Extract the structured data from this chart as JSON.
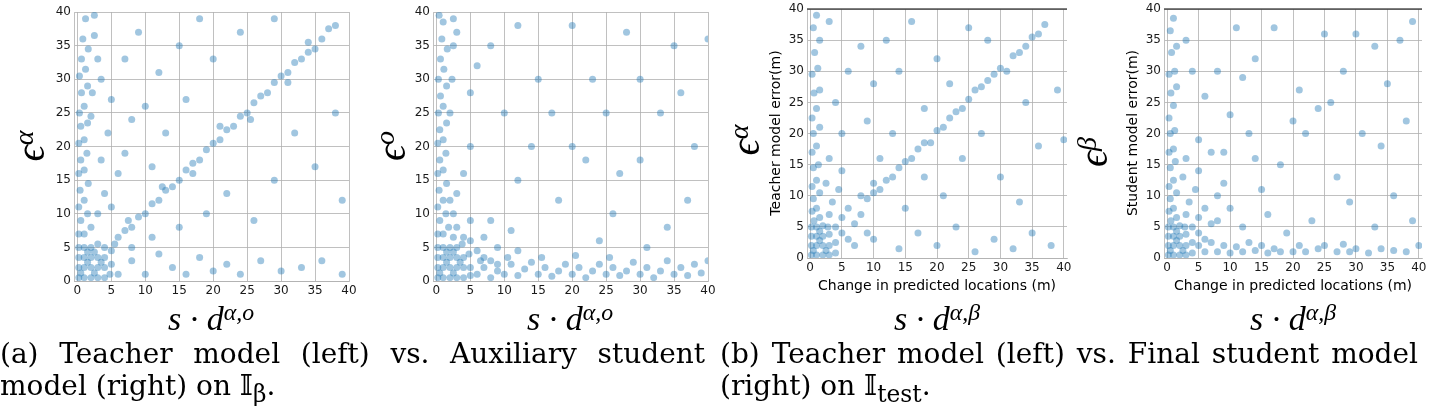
{
  "chart_data": [
    {
      "type": "scatter",
      "xlabel": "s · d$^{α,o}$",
      "ylabel": "ϵ$^{α}$",
      "xlim": [
        -0.5,
        40
      ],
      "ylim": [
        0,
        40
      ],
      "xticks": [
        0,
        5,
        10,
        15,
        20,
        25,
        30,
        35,
        40
      ],
      "yticks": [
        0,
        5,
        10,
        15,
        20,
        25,
        30,
        35,
        40
      ],
      "grid": true,
      "marker": "circle",
      "color": "#1f77b4",
      "x": [
        0.2,
        1,
        2,
        3,
        4,
        4.8,
        0.2,
        1,
        2,
        3,
        4,
        5,
        0.2,
        1,
        2,
        3,
        4,
        5,
        0.2,
        1,
        2,
        3,
        4,
        5.5,
        0.5,
        1.5,
        2.5,
        3.5,
        1.5,
        2.5,
        0.2,
        1,
        2,
        0.5,
        1.5,
        0.2,
        1,
        0.4,
        1.6,
        0.2,
        1,
        0.5,
        1.4,
        0.2,
        1,
        0.5,
        1.5,
        0.3,
        1,
        2,
        0.6,
        1.5,
        0.3,
        1.2,
        2.2,
        0.6,
        1.6,
        0.8,
        2.5,
        1.2,
        2.5,
        3,
        6,
        7,
        8,
        9,
        10,
        11,
        12,
        13,
        14,
        15,
        16,
        17,
        18,
        19,
        20,
        21,
        22,
        23,
        24,
        25,
        26,
        27,
        28,
        29,
        30,
        31,
        32,
        33,
        34,
        35,
        36,
        37,
        38,
        7.5,
        12.5,
        17,
        21,
        25.5,
        31,
        34,
        3,
        4,
        5,
        6,
        3.5,
        7,
        4.5,
        8,
        5,
        10,
        3.5,
        7,
        12,
        9,
        15,
        18,
        13,
        11,
        16,
        20,
        24,
        29,
        6,
        8,
        10,
        12,
        14,
        16,
        18,
        20,
        22,
        24,
        27,
        30,
        33,
        36,
        39,
        8,
        11,
        15,
        19,
        22,
        26,
        29,
        32,
        35,
        38,
        39
      ],
      "values": [
        0.5,
        0.5,
        0.5,
        0.5,
        0.5,
        1,
        2,
        2,
        2,
        2,
        2,
        2.5,
        3.5,
        3.5,
        3.5,
        3.5,
        3.5,
        4.5,
        5,
        5,
        5,
        5.5,
        5,
        5.5,
        1.2,
        2.8,
        1.2,
        2.8,
        4.3,
        4.3,
        7,
        7,
        8,
        9,
        10,
        11,
        12,
        13.5,
        14.5,
        16,
        16.5,
        18,
        19,
        20.5,
        21,
        23,
        23.5,
        25,
        26,
        24.5,
        28,
        29,
        30.5,
        31.5,
        28,
        33,
        34.5,
        36,
        36.5,
        39,
        39.5,
        33,
        6.5,
        7.5,
        8,
        9.5,
        10,
        11.5,
        12,
        13.5,
        14,
        15,
        16.5,
        17.5,
        18,
        19.5,
        20.5,
        21,
        22.5,
        23,
        24.5,
        25,
        26.5,
        27.5,
        28,
        29.5,
        30.5,
        31,
        32.5,
        33,
        34,
        34.5,
        36,
        37.5,
        38,
        9,
        14,
        16,
        23,
        24,
        29.5,
        35.5,
        10,
        13,
        11,
        16,
        18,
        19,
        22,
        24,
        27,
        26,
        30,
        33,
        31,
        37,
        35,
        39,
        22,
        17,
        27,
        33,
        37,
        39,
        1,
        3,
        1,
        4,
        2,
        1,
        3.5,
        1.5,
        2.5,
        1,
        3,
        1.5,
        2,
        3,
        1,
        5,
        6.5,
        8,
        10,
        13,
        9,
        15,
        22,
        17,
        25,
        12
      ],
      "annotations": [
        "(a) Teacher model (left) vs. Auxiliary student model (right) on 𝕀$_{β}$."
      ]
    },
    {
      "type": "scatter",
      "xlabel": "s · d$^{α,o}$",
      "ylabel": "ϵ$^{o}$",
      "xlim": [
        -0.5,
        40
      ],
      "ylim": [
        0,
        40
      ],
      "xticks": [
        0,
        5,
        10,
        15,
        20,
        25,
        30,
        35,
        40
      ],
      "yticks": [
        0,
        5,
        10,
        15,
        20,
        25,
        30,
        35,
        40
      ],
      "grid": true,
      "marker": "circle",
      "color": "#1f77b4",
      "x": [
        0.2,
        1,
        2,
        3,
        4,
        5,
        0.2,
        1,
        2,
        3,
        4,
        5,
        0.2,
        1,
        2,
        3,
        4,
        4.8,
        0.2,
        1,
        2,
        3,
        3.8,
        2.5,
        0.5,
        1.5,
        2.5,
        3.5,
        1.5,
        2.5,
        0.2,
        1,
        1.8,
        0.5,
        1.4,
        0.2,
        1,
        2,
        0.4,
        1.5,
        0.2,
        1,
        0.5,
        1.4,
        0.2,
        1,
        0.5,
        1.5,
        0.3,
        1,
        2,
        0.6,
        1.5,
        0.3,
        1.1,
        2.3,
        0.6,
        1.6,
        0.8,
        2.5,
        1,
        2.5,
        3,
        0.4,
        3,
        4,
        5,
        6,
        7,
        8,
        9,
        2.5,
        3,
        5,
        7,
        9,
        12,
        4,
        8,
        11,
        6,
        7,
        8,
        9,
        10,
        11,
        12,
        13,
        14,
        15,
        16,
        17,
        18,
        19,
        20,
        21,
        22,
        23,
        24,
        25,
        26,
        27,
        28,
        29,
        30,
        31,
        32,
        33,
        34,
        35,
        36,
        37,
        38,
        39,
        40,
        6.5,
        10.5,
        15.5,
        20.5,
        25.5,
        5,
        10,
        15,
        20,
        25,
        30,
        35,
        8,
        12,
        18,
        22,
        26,
        30,
        34,
        38,
        17,
        23,
        28,
        33,
        37,
        40,
        12,
        5,
        6,
        20,
        27,
        31,
        36,
        14,
        24
      ],
      "values": [
        0.5,
        0.5,
        0.5,
        0.5,
        0.5,
        0.8,
        2,
        2,
        2,
        2,
        2,
        2,
        3.5,
        3.5,
        3.5,
        3.5,
        3.5,
        4,
        5,
        5,
        5,
        5,
        5.5,
        6.5,
        1.2,
        2.8,
        1.2,
        2.8,
        4.3,
        4.3,
        7,
        7,
        8,
        9,
        10,
        11,
        12,
        12,
        13.5,
        14.5,
        16,
        16.5,
        18,
        19,
        20.5,
        21,
        22.5,
        23.5,
        25,
        26,
        25,
        27.5,
        29,
        30,
        31.5,
        30,
        33,
        34.5,
        36,
        35,
        38.5,
        39,
        37,
        39.5,
        8,
        6.5,
        6,
        4.5,
        3.5,
        3,
        2.5,
        10,
        13,
        9,
        6.5,
        5,
        4.5,
        16,
        9,
        7.5,
        1,
        2,
        0.5,
        1.5,
        1,
        2.5,
        0.8,
        1.8,
        2.8,
        1,
        2,
        0.7,
        1.5,
        2.5,
        1,
        2,
        0.5,
        1.5,
        2.5,
        1,
        2,
        0.8,
        1.5,
        2.8,
        1,
        2,
        0.5,
        1.5,
        3,
        1,
        2,
        0.8,
        2.5,
        1.2,
        3,
        3,
        3.5,
        3.5,
        3.8,
        3.5,
        20,
        25,
        30,
        20,
        25,
        30,
        35,
        35,
        15,
        12,
        18,
        10,
        18,
        8,
        20,
        25,
        30,
        37,
        25,
        12,
        36,
        38,
        28,
        32,
        38,
        16,
        5,
        28,
        20,
        6
      ]
    },
    {
      "type": "scatter",
      "xlabel": "s · d$^{α,β}$",
      "ylabel": "ϵ$^{α}$",
      "xlim": [
        -0.5,
        40.5
      ],
      "ylim": [
        0,
        40
      ],
      "xticks": [
        0,
        5,
        10,
        15,
        20,
        25,
        30,
        35,
        40
      ],
      "yticks": [
        0,
        5,
        10,
        15,
        20,
        25,
        30,
        35,
        40
      ],
      "grid": true,
      "marker": "circle",
      "color": "#1f77b4",
      "x": [
        0.2,
        1,
        2,
        3,
        4,
        0.2,
        1,
        2,
        3,
        4,
        0.2,
        1,
        2,
        3,
        0.2,
        1,
        2,
        0.5,
        1.5,
        2.5,
        1.5,
        0.6,
        1.5,
        2.8,
        0.3,
        1,
        0.5,
        1.5,
        0.3,
        1,
        0.5,
        1.3,
        0.3,
        1,
        0.5,
        1.5,
        0.3,
        1,
        0.6,
        1.5,
        0.3,
        1.2,
        0.7,
        1.5,
        0.5,
        1,
        3,
        4,
        5,
        5,
        6,
        7,
        3.5,
        6,
        8,
        4.5,
        7,
        9,
        2.5,
        5,
        8,
        3,
        9,
        10,
        11,
        12,
        13,
        14,
        15,
        16,
        17,
        18,
        19,
        20,
        21,
        22,
        23,
        24,
        25,
        26,
        27,
        28,
        29,
        30,
        31,
        32,
        33,
        34,
        35,
        36,
        37,
        10,
        4,
        6,
        8,
        10,
        12,
        14,
        16,
        20,
        5,
        9,
        13,
        18,
        22,
        25,
        28,
        3,
        11,
        15,
        18,
        21,
        24,
        27,
        30,
        33,
        36,
        39,
        10,
        14,
        17,
        20,
        23,
        26,
        29,
        32,
        35,
        38,
        34,
        40
      ],
      "values": [
        0.5,
        0.5,
        0.5,
        0.5,
        0.8,
        2,
        2,
        2,
        2,
        2.5,
        3.5,
        3.5,
        3.5,
        3.8,
        5,
        5,
        5.2,
        1.2,
        2.8,
        1.2,
        4.3,
        6,
        6.5,
        5,
        7.5,
        8,
        9.5,
        10.5,
        11.5,
        12.5,
        14.5,
        15,
        17,
        18,
        20,
        21,
        22.5,
        24,
        26.5,
        27,
        29.5,
        30.5,
        33,
        35,
        37,
        39,
        7,
        5,
        4,
        6.5,
        3,
        5.5,
        9,
        8,
        7,
        11,
        2,
        4,
        12,
        14,
        10,
        16,
        9.5,
        10.5,
        11,
        12.5,
        13,
        14.5,
        15.5,
        16,
        17.5,
        18.5,
        18.5,
        20.5,
        21,
        22.5,
        23.5,
        24,
        25.5,
        27,
        27.5,
        28.5,
        29.5,
        30.5,
        30,
        32.5,
        33,
        34,
        35.5,
        36,
        37.5,
        12,
        25,
        30,
        34,
        28,
        35,
        30,
        38,
        32,
        20,
        22,
        20,
        24,
        28,
        37,
        35,
        38,
        16,
        8,
        13,
        10,
        16,
        20,
        13,
        9,
        18,
        27,
        3,
        1.5,
        4,
        2,
        5,
        1,
        3,
        1.5,
        4,
        2,
        25,
        19
      ],
      "annotations": [
        "Change in predicted locations (m)",
        "Teacher model error(m)",
        "(b) Teacher model (left) vs. Final student model (right) on 𝕀$_{test}$."
      ]
    },
    {
      "type": "scatter",
      "xlabel": "s · d$^{α,β}$",
      "ylabel": "ϵ$^{β}$",
      "xlim": [
        -0.5,
        40.5
      ],
      "ylim": [
        0,
        40
      ],
      "xticks": [
        0,
        5,
        10,
        15,
        20,
        25,
        30,
        35,
        40
      ],
      "yticks": [
        0,
        5,
        10,
        15,
        20,
        25,
        30,
        35,
        40
      ],
      "grid": true,
      "marker": "circle",
      "color": "#1f77b4",
      "x": [
        0.2,
        1,
        2,
        3,
        4,
        0.2,
        1,
        2,
        3,
        4,
        0.2,
        1,
        2,
        3,
        0.2,
        1,
        2,
        0.5,
        1.5,
        2.5,
        1.5,
        0.6,
        1.5,
        2.8,
        0.3,
        1,
        0.5,
        1.5,
        0.3,
        1,
        0.5,
        1.3,
        0.3,
        1,
        0.5,
        1.2,
        0.3,
        1,
        0.6,
        1.5,
        0.3,
        1.2,
        0.7,
        1.5,
        0.5,
        1,
        3,
        4,
        5,
        5,
        6,
        7,
        3.5,
        6,
        8,
        4.5,
        2.5,
        5,
        8,
        3,
        9,
        10,
        12,
        7,
        5,
        6,
        7,
        8,
        9,
        10,
        11,
        12,
        13,
        14,
        15,
        16,
        17,
        18,
        20,
        21,
        22,
        24,
        25,
        27,
        28,
        29,
        30,
        32,
        34,
        36,
        38,
        40,
        4,
        6,
        8,
        10,
        12,
        14,
        14,
        17,
        20,
        22,
        5,
        9,
        13,
        18,
        21,
        24,
        26,
        28,
        30,
        33,
        35,
        37,
        39,
        31,
        27,
        29,
        23,
        16,
        19,
        33,
        36,
        39,
        25,
        11,
        3,
        34,
        38,
        15
      ],
      "values": [
        0.5,
        0.5,
        0.5,
        0.5,
        0.8,
        2,
        2,
        2,
        2,
        2.5,
        3.5,
        3.5,
        3.5,
        3.8,
        5,
        5,
        5.2,
        1.2,
        2.8,
        1.2,
        4.3,
        6,
        6.5,
        5,
        7.5,
        8,
        9.5,
        10.5,
        11.5,
        12.5,
        14.5,
        15.5,
        17,
        17.5,
        20,
        20.5,
        22.5,
        24.5,
        26.5,
        27.5,
        29.5,
        30,
        33,
        34,
        36.5,
        38.5,
        7,
        5,
        4,
        6.5,
        3,
        5.5,
        9,
        8,
        6,
        11,
        13,
        14,
        10,
        16,
        12,
        8,
        5,
        17,
        2,
        1,
        2.5,
        1,
        2,
        0.8,
        1.8,
        1,
        2.5,
        1.2,
        2,
        0.8,
        1.5,
        1,
        1,
        2,
        1,
        1.5,
        2,
        1,
        2.2,
        1,
        1.5,
        0.8,
        1.5,
        1.2,
        1,
        2,
        30,
        26,
        30,
        23,
        29,
        16,
        32,
        37,
        22,
        20,
        19,
        17,
        20,
        15,
        27,
        24,
        25,
        30,
        36,
        34,
        28,
        35,
        38,
        20,
        13,
        9,
        6,
        7,
        4,
        5,
        10,
        6,
        36,
        37,
        35,
        18,
        22,
        11
      ],
      "annotations": [
        "Change in predicted locations (m)",
        "Student model error(m)"
      ]
    }
  ]
}
